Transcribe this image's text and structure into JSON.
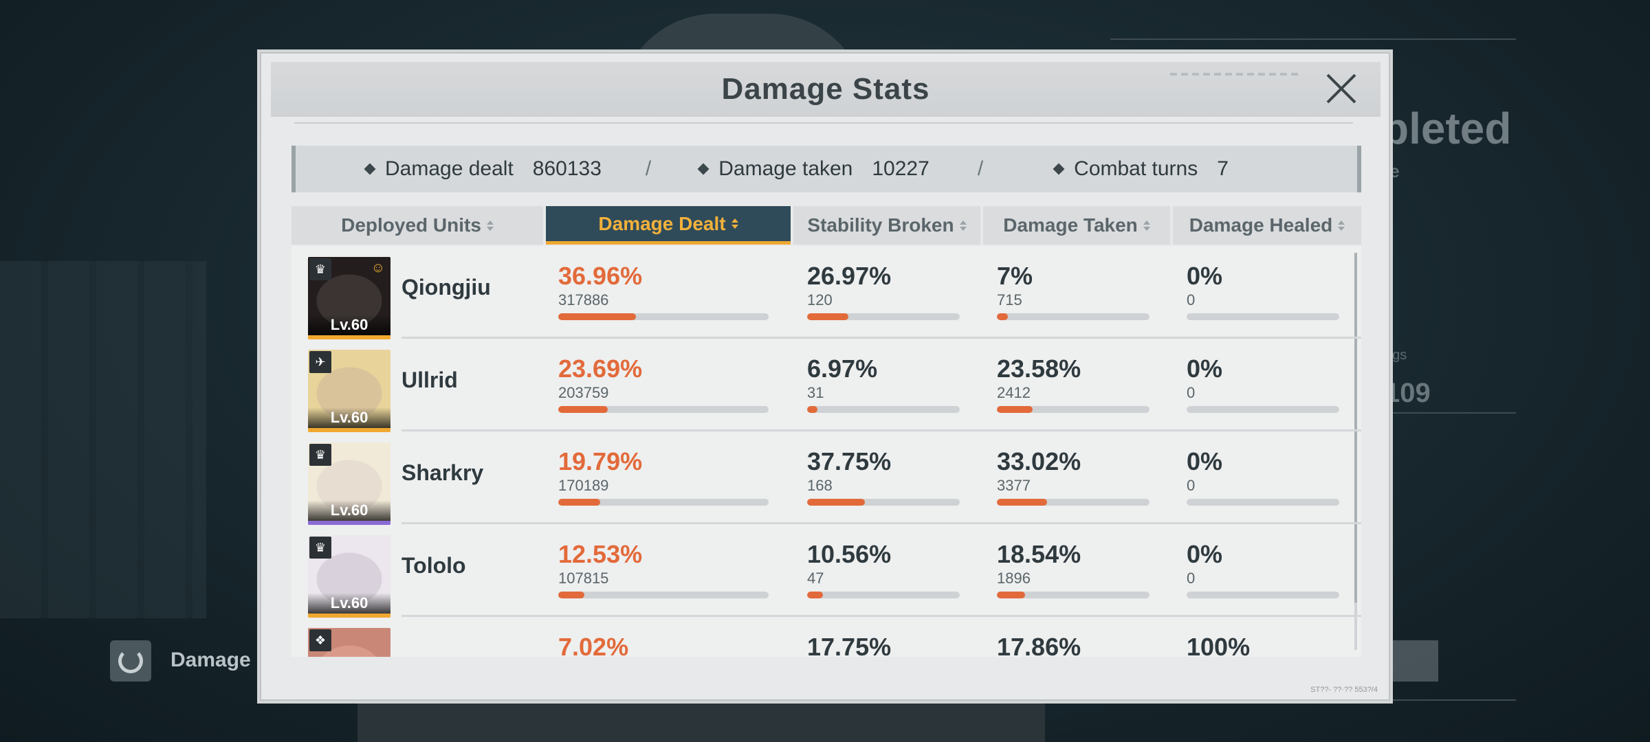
{
  "background": {
    "completed_text": "pleted",
    "sub_text": "le",
    "tag_text": "ngs",
    "number_text": "109",
    "left_button_label": "Damage"
  },
  "modal": {
    "title": "Damage Stats",
    "close_icon": "close-icon"
  },
  "summary": {
    "damage_dealt_label": "Damage dealt",
    "damage_dealt_value": "860133",
    "damage_taken_label": "Damage taken",
    "damage_taken_value": "10227",
    "combat_turns_label": "Combat turns",
    "combat_turns_value": "7",
    "separator": "/"
  },
  "columns": [
    {
      "label": "Deployed Units",
      "active": false
    },
    {
      "label": "Damage Dealt",
      "active": true
    },
    {
      "label": "Stability Broken",
      "active": false
    },
    {
      "label": "Damage Taken",
      "active": false
    },
    {
      "label": "Damage Healed",
      "active": false
    }
  ],
  "units": [
    {
      "name": "Qiongjiu",
      "level": "Lv.60",
      "rarity_color": "#f0a830",
      "class_icon": "flame-class-icon",
      "has_squad_icon": true,
      "damage_dealt": {
        "pct": "36.96%",
        "value": "317886",
        "fraction": 0.3696
      },
      "stability_broken": {
        "pct": "26.97%",
        "value": "120",
        "fraction": 0.2697
      },
      "damage_taken": {
        "pct": "7%",
        "value": "715",
        "fraction": 0.07
      },
      "damage_healed": {
        "pct": "0%",
        "value": "0",
        "fraction": 0
      }
    },
    {
      "name": "Ullrid",
      "level": "Lv.60",
      "rarity_color": "#f0a830",
      "class_icon": "sniper-class-icon",
      "has_squad_icon": false,
      "damage_dealt": {
        "pct": "23.69%",
        "value": "203759",
        "fraction": 0.2369
      },
      "stability_broken": {
        "pct": "6.97%",
        "value": "31",
        "fraction": 0.0697
      },
      "damage_taken": {
        "pct": "23.58%",
        "value": "2412",
        "fraction": 0.2358
      },
      "damage_healed": {
        "pct": "0%",
        "value": "0",
        "fraction": 0
      }
    },
    {
      "name": "Sharkry",
      "level": "Lv.60",
      "rarity_color": "#8a6ad3",
      "class_icon": "flame-class-icon",
      "has_squad_icon": false,
      "damage_dealt": {
        "pct": "19.79%",
        "value": "170189",
        "fraction": 0.1979
      },
      "stability_broken": {
        "pct": "37.75%",
        "value": "168",
        "fraction": 0.3775
      },
      "damage_taken": {
        "pct": "33.02%",
        "value": "3377",
        "fraction": 0.3302
      },
      "damage_healed": {
        "pct": "0%",
        "value": "0",
        "fraction": 0
      }
    },
    {
      "name": "Tololo",
      "level": "Lv.60",
      "rarity_color": "#f0a830",
      "class_icon": "flame-class-icon",
      "has_squad_icon": false,
      "damage_dealt": {
        "pct": "12.53%",
        "value": "107815",
        "fraction": 0.1253
      },
      "stability_broken": {
        "pct": "10.56%",
        "value": "47",
        "fraction": 0.1056
      },
      "damage_taken": {
        "pct": "18.54%",
        "value": "1896",
        "fraction": 0.1854
      },
      "damage_healed": {
        "pct": "0%",
        "value": "0",
        "fraction": 0
      }
    },
    {
      "name": "",
      "level": "",
      "rarity_color": "#f0a830",
      "class_icon": "support-class-icon",
      "has_squad_icon": false,
      "damage_dealt": {
        "pct": "7.02%",
        "value": "",
        "fraction": 0.0702
      },
      "stability_broken": {
        "pct": "17.75%",
        "value": "",
        "fraction": 0.1775
      },
      "damage_taken": {
        "pct": "17.86%",
        "value": "",
        "fraction": 0.1786
      },
      "damage_healed": {
        "pct": "100%",
        "value": "",
        "fraction": 1.0
      }
    }
  ],
  "footer_code": "ST??- ??·?? 553?/4",
  "scroll": {
    "visible_fraction": 0.88
  }
}
